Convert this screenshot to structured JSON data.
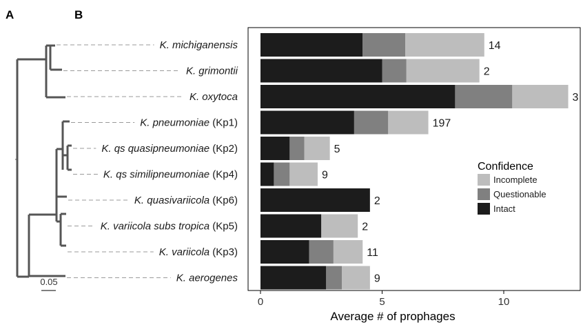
{
  "panel_labels": {
    "a": "A",
    "b": "B"
  },
  "tree": {
    "scale_label": "0.05"
  },
  "chart_data": {
    "type": "bar",
    "orientation": "horizontal",
    "stacked": true,
    "categories": [
      {
        "name": "K. michiganensis",
        "suffix": "",
        "count": "14"
      },
      {
        "name": "K. grimontii",
        "suffix": "",
        "count": "2"
      },
      {
        "name": "K. oxytoca",
        "suffix": "",
        "count": "3"
      },
      {
        "name": "K. pneumoniae",
        "suffix": " (Kp1)",
        "count": "197"
      },
      {
        "name": "K. qs quasipneumoniae",
        "suffix": " (Kp2)",
        "count": "5"
      },
      {
        "name": "K. qs similipneumoniae",
        "suffix": " (Kp4)",
        "count": "9"
      },
      {
        "name": "K. quasivariicola",
        "suffix": " (Kp6)",
        "count": "2"
      },
      {
        "name": "K. variicola subs tropica",
        "suffix": " (Kp5)",
        "count": "2"
      },
      {
        "name": "K. variicola",
        "suffix": " (Kp3)",
        "count": "11"
      },
      {
        "name": "K. aerogenes",
        "suffix": "",
        "count": "9"
      }
    ],
    "series": [
      {
        "name": "Intact",
        "color": "#1c1c1c",
        "values": [
          4.2,
          5.0,
          8.0,
          3.85,
          1.2,
          0.55,
          4.5,
          2.5,
          2.0,
          2.7
        ]
      },
      {
        "name": "Questionable",
        "color": "#808080",
        "values": [
          1.75,
          1.0,
          2.35,
          1.4,
          0.6,
          0.65,
          0.0,
          0.0,
          1.0,
          0.65
        ]
      },
      {
        "name": "Incomplete",
        "color": "#bdbdbd",
        "values": [
          3.25,
          3.0,
          2.3,
          1.65,
          1.05,
          1.15,
          0.0,
          1.5,
          1.2,
          1.15
        ]
      }
    ],
    "xlabel": "Average # of prophages",
    "xlim": [
      0,
      13
    ],
    "xticks": [
      0,
      5,
      10
    ],
    "legend": {
      "title": "Confidence",
      "position": "right",
      "entries": [
        "Incomplete",
        "Questionable",
        "Intact"
      ]
    }
  }
}
